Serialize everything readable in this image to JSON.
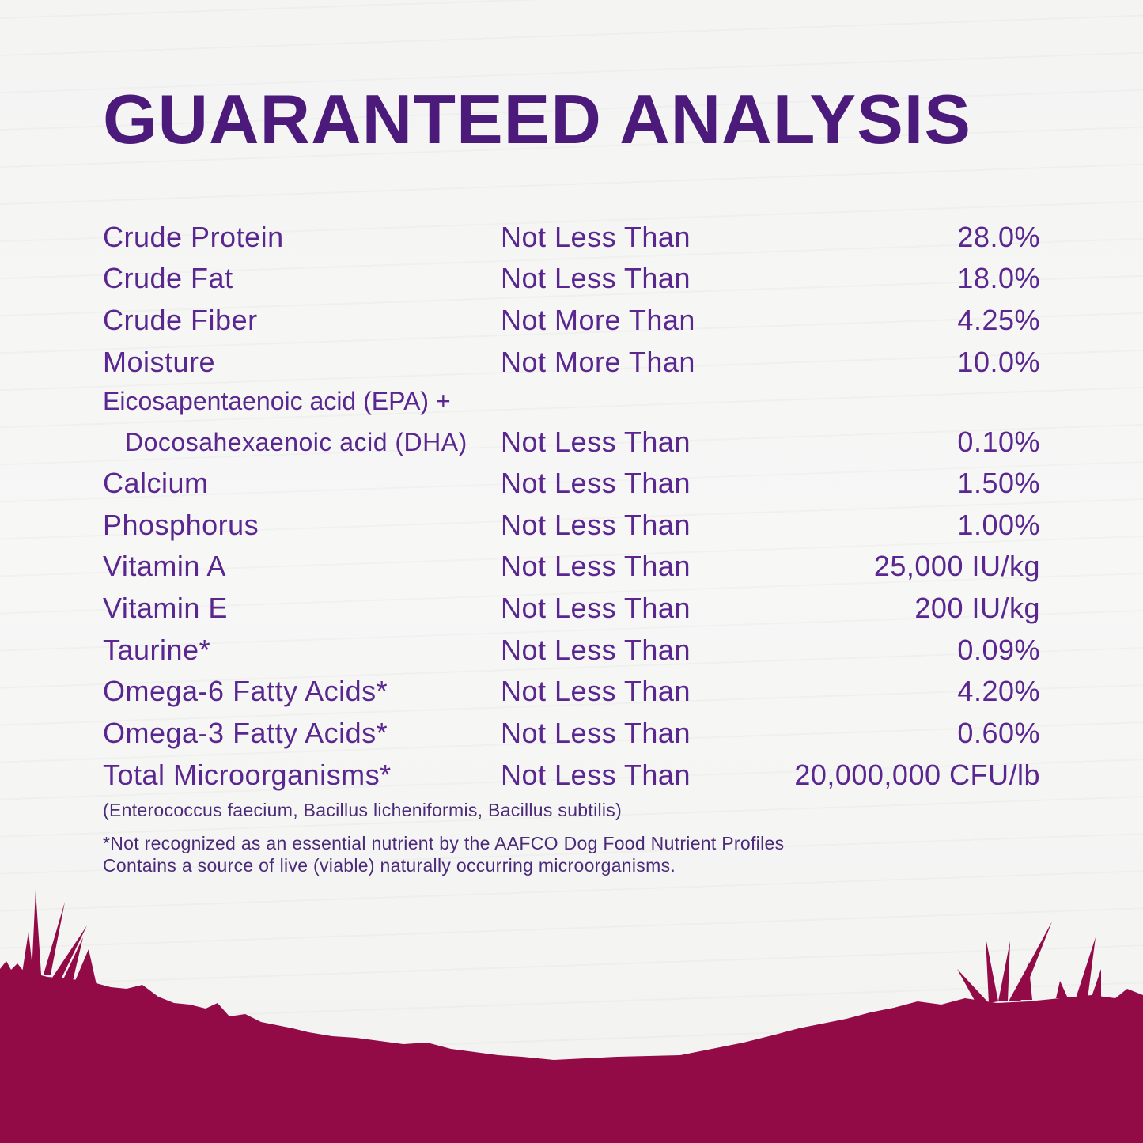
{
  "title": "GUARANTEED ANALYSIS",
  "rows": [
    {
      "name": "Crude Protein",
      "condition": "Not Less Than",
      "value": "28.0%"
    },
    {
      "name": "Crude Fat",
      "condition": "Not Less Than",
      "value": "18.0%"
    },
    {
      "name": "Crude Fiber",
      "condition": "Not More Than",
      "value": "4.25%"
    },
    {
      "name": "Moisture",
      "condition": "Not More Than",
      "value": "10.0%"
    },
    {
      "name_line1": "Eicosapentaenoic acid (EPA) +",
      "name": "Docosahexaenoic acid (DHA)",
      "condition": "Not Less Than",
      "value": "0.10%"
    },
    {
      "name": "Calcium",
      "condition": "Not Less Than",
      "value": "1.50%"
    },
    {
      "name": "Phosphorus",
      "condition": "Not Less Than",
      "value": "1.00%"
    },
    {
      "name": "Vitamin A",
      "condition": "Not Less Than",
      "value": "25,000 IU/kg"
    },
    {
      "name": "Vitamin E",
      "condition": "Not Less Than",
      "value": "200 IU/kg"
    },
    {
      "name": "Taurine*",
      "condition": "Not Less Than",
      "value": "0.09%"
    },
    {
      "name": "Omega-6 Fatty Acids*",
      "condition": "Not Less Than",
      "value": "4.20%"
    },
    {
      "name": "Omega-3 Fatty Acids*",
      "condition": "Not Less Than",
      "value": "0.60%"
    },
    {
      "name": "Total Microorganisms*",
      "condition": "Not Less Than",
      "value": "20,000,000 CFU/lb"
    }
  ],
  "microorganisms_note": "(Enterococcus faecium, Bacillus licheniformis, Bacillus subtilis)",
  "footnote_1": "*Not recognized as an essential nutrient by the AAFCO Dog Food Nutrient Profiles",
  "footnote_2": "Contains a source of live (viable) naturally occurring microorganisms.",
  "colors": {
    "title": "#4b1a7a",
    "text": "#5a2790",
    "grass": "#920a46",
    "background": "#f5f5f4"
  }
}
